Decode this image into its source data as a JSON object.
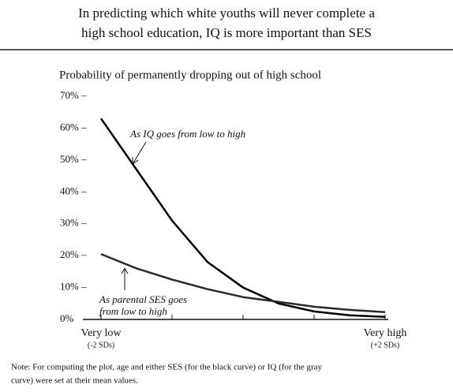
{
  "chart_data": {
    "type": "line",
    "title": [
      "In predicting which white youths will never complete a",
      "high school education, IQ is more important than SES"
    ],
    "subtitle": "Probability of permanently dropping out of high school",
    "x": [
      -2,
      -1.5,
      -1,
      -0.5,
      0,
      0.5,
      1,
      1.5,
      2
    ],
    "xlim": [
      -2,
      2
    ],
    "xticks": [
      {
        "value": -2,
        "label": "Very low",
        "sublabel": "(-2 SDs)"
      },
      {
        "value": -1,
        "label": null
      },
      {
        "value": 0,
        "label": null
      },
      {
        "value": 1,
        "label": null
      },
      {
        "value": 2,
        "label": "Very high",
        "sublabel": "(+2 SDs)"
      }
    ],
    "ylim": [
      0,
      70
    ],
    "yticks": [
      {
        "value": 0,
        "label": "0%"
      },
      {
        "value": 10,
        "label": "10% –"
      },
      {
        "value": 20,
        "label": "20% –"
      },
      {
        "value": 30,
        "label": "30% –"
      },
      {
        "value": 40,
        "label": "40% –"
      },
      {
        "value": 50,
        "label": "50% –"
      },
      {
        "value": 60,
        "label": "60% –"
      },
      {
        "value": 70,
        "label": "70% –"
      }
    ],
    "series": [
      {
        "name": "As IQ goes from low to high",
        "color": "#000000",
        "values": [
          63,
          47,
          31,
          18,
          10,
          5,
          2.5,
          1.3,
          0.8
        ]
      },
      {
        "name": "As parental SES goes from low to high",
        "color": "#2a2a2a",
        "values": [
          20.5,
          16,
          12.5,
          9.5,
          7,
          5.5,
          4,
          3,
          2.3
        ]
      }
    ],
    "note": [
      "Note: For computing the plot, age and either SES (for the black curve) or IQ (for the gray",
      "curve) were set at their mean values."
    ]
  }
}
